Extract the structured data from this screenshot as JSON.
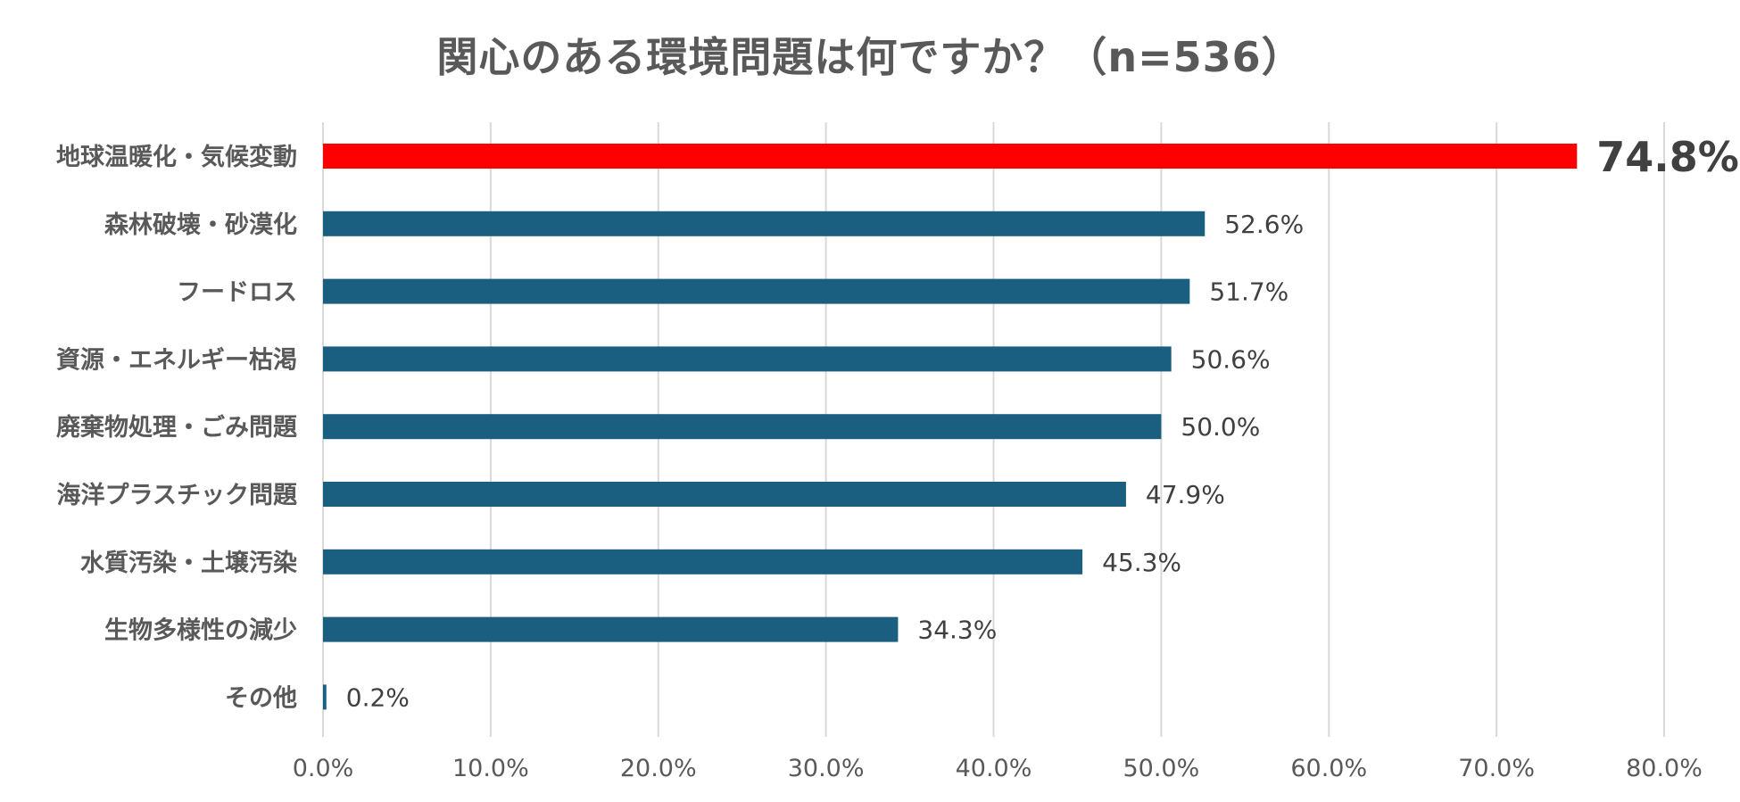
{
  "chart_data": {
    "type": "bar",
    "orientation": "horizontal",
    "title": "関心のある環境問題は何ですか？（n=536）",
    "categories": [
      "地球温暖化・気候変動",
      "森林破壊・砂漠化",
      "フードロス",
      "資源・エネルギー枯渇",
      "廃棄物処理・ごみ問題",
      "海洋プラスチック問題",
      "水質汚染・土壌汚染",
      "生物多様性の減少",
      "その他"
    ],
    "values": [
      74.8,
      52.6,
      51.7,
      50.6,
      50.0,
      47.9,
      45.3,
      34.3,
      0.2
    ],
    "value_labels": [
      "74.8%",
      "52.6%",
      "51.7%",
      "50.6%",
      "50.0%",
      "47.9%",
      "45.3%",
      "34.3%",
      "0.2%"
    ],
    "highlight_index": 0,
    "xlim": [
      0,
      80
    ],
    "xticks": [
      "0.0%",
      "10.0%",
      "20.0%",
      "30.0%",
      "40.0%",
      "50.0%",
      "60.0%",
      "70.0%",
      "80.0%"
    ],
    "grid": true,
    "legend": "none",
    "colors": {
      "bar": "#1a5e80",
      "highlight": "#ff0000",
      "grid": "#d9d9d9",
      "text": "#595959",
      "label": "#404040",
      "highlight_label": "#404040"
    }
  }
}
